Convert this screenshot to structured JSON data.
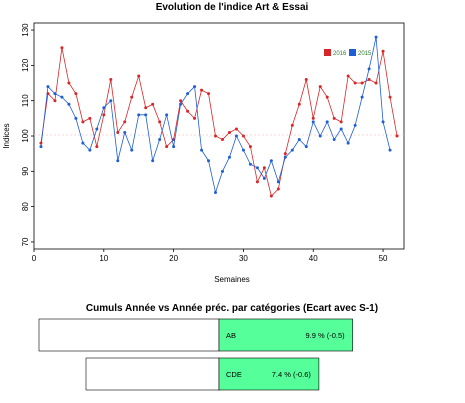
{
  "chart_data": [
    {
      "type": "line",
      "title": "Evolution de l'indice Art & Essai",
      "xlabel": "Semaines",
      "ylabel": "Indices",
      "xlim": [
        0,
        53
      ],
      "ylim": [
        68,
        132
      ],
      "x_ticks": [
        0,
        10,
        20,
        30,
        40,
        50
      ],
      "y_ticks": [
        70,
        80,
        90,
        100,
        110,
        120,
        130
      ],
      "reference_line": 100,
      "legend_position": "top-right",
      "x": [
        1,
        2,
        3,
        4,
        5,
        6,
        7,
        8,
        9,
        10,
        11,
        12,
        13,
        14,
        15,
        16,
        17,
        18,
        19,
        20,
        21,
        22,
        23,
        24,
        25,
        26,
        27,
        28,
        29,
        30,
        31,
        32,
        33,
        34,
        35,
        36,
        37,
        38,
        39,
        40,
        41,
        42,
        43,
        44,
        45,
        46,
        47,
        48,
        49,
        50,
        51,
        52
      ],
      "series": [
        {
          "name": "2016",
          "color": "#d62728",
          "values": [
            98,
            112,
            110,
            125,
            115,
            112,
            104,
            105,
            97,
            106,
            116,
            101,
            104,
            111,
            117,
            108,
            109,
            104,
            97,
            99,
            110,
            107,
            105,
            113,
            112,
            100,
            99,
            101,
            102,
            100,
            97,
            87,
            91,
            83,
            85,
            95,
            103,
            109,
            116,
            105,
            114,
            111,
            105,
            104,
            117,
            115,
            115,
            116,
            115,
            124,
            111,
            100
          ]
        },
        {
          "name": "2015",
          "color": "#1f5fd6",
          "values": [
            97,
            114,
            112,
            111,
            109,
            105,
            98,
            96,
            102,
            108,
            110,
            93,
            101,
            96,
            106,
            106,
            93,
            99,
            106,
            97,
            109,
            112,
            114,
            96,
            93,
            84,
            90,
            94,
            100,
            96,
            92,
            91,
            88,
            93,
            87,
            94,
            96,
            99,
            97,
            104,
            100,
            104,
            99,
            102,
            98,
            103,
            111,
            119,
            128,
            104,
            96,
            null
          ]
        }
      ]
    },
    {
      "type": "bar",
      "title": "Cumuls Année vs Année préc. par catégories (Ecart avec S-1)",
      "categories": [
        "AB",
        "CDE"
      ],
      "values": [
        9.9,
        7.4
      ],
      "value_labels": [
        "9.9 %  (-0.5)",
        "7.4 %  (-0.6)"
      ],
      "colors": {
        "highlight": "#55ff99",
        "base": "#ffffff"
      }
    }
  ]
}
